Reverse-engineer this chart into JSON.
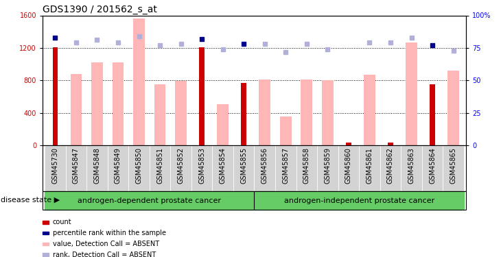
{
  "title": "GDS1390 / 201562_s_at",
  "samples": [
    "GSM45730",
    "GSM45847",
    "GSM45848",
    "GSM45849",
    "GSM45850",
    "GSM45851",
    "GSM45852",
    "GSM45853",
    "GSM45854",
    "GSM45855",
    "GSM45856",
    "GSM45857",
    "GSM45858",
    "GSM45859",
    "GSM45860",
    "GSM45861",
    "GSM45862",
    "GSM45863",
    "GSM45864",
    "GSM45865"
  ],
  "red_bars": [
    1210,
    0,
    0,
    0,
    0,
    0,
    0,
    1210,
    0,
    770,
    0,
    0,
    0,
    0,
    30,
    0,
    30,
    0,
    750,
    0
  ],
  "pink_bars": [
    0,
    880,
    1020,
    1020,
    1560,
    750,
    790,
    0,
    510,
    0,
    810,
    355,
    810,
    800,
    0,
    870,
    0,
    1270,
    0,
    920
  ],
  "dark_blue_squares_pct": [
    83,
    null,
    null,
    null,
    null,
    null,
    null,
    82,
    null,
    78,
    null,
    null,
    null,
    null,
    null,
    null,
    null,
    null,
    77,
    null
  ],
  "light_blue_squares_pct": [
    null,
    79,
    81,
    79,
    84,
    77,
    78,
    null,
    74,
    null,
    78,
    72,
    78,
    74,
    null,
    79,
    79,
    83,
    null,
    73
  ],
  "group1_count": 10,
  "group1_label": "androgen-dependent prostate cancer",
  "group2_label": "androgen-independent prostate cancer",
  "ylim_left": [
    0,
    1600
  ],
  "ylim_right": [
    0,
    100
  ],
  "yticks_left": [
    0,
    400,
    800,
    1200,
    1600
  ],
  "yticks_right": [
    0,
    25,
    50,
    75,
    100
  ],
  "ytick_labels_right": [
    "0",
    "25",
    "50",
    "75",
    "100%"
  ],
  "legend_items": [
    {
      "label": "count",
      "color": "#cc0000"
    },
    {
      "label": "percentile rank within the sample",
      "color": "#00008b"
    },
    {
      "label": "value, Detection Call = ABSENT",
      "color": "#ffb6b6"
    },
    {
      "label": "rank, Detection Call = ABSENT",
      "color": "#b0b0d8"
    }
  ],
  "red_color": "#cc0000",
  "pink_color": "#ffb6b6",
  "dark_blue_color": "#00008b",
  "light_blue_color": "#b0b0d8",
  "sample_bg": "#d3d3d3",
  "group_bg": "#66cc66",
  "title_fontsize": 10,
  "tick_fontsize": 7,
  "label_fontsize": 8
}
